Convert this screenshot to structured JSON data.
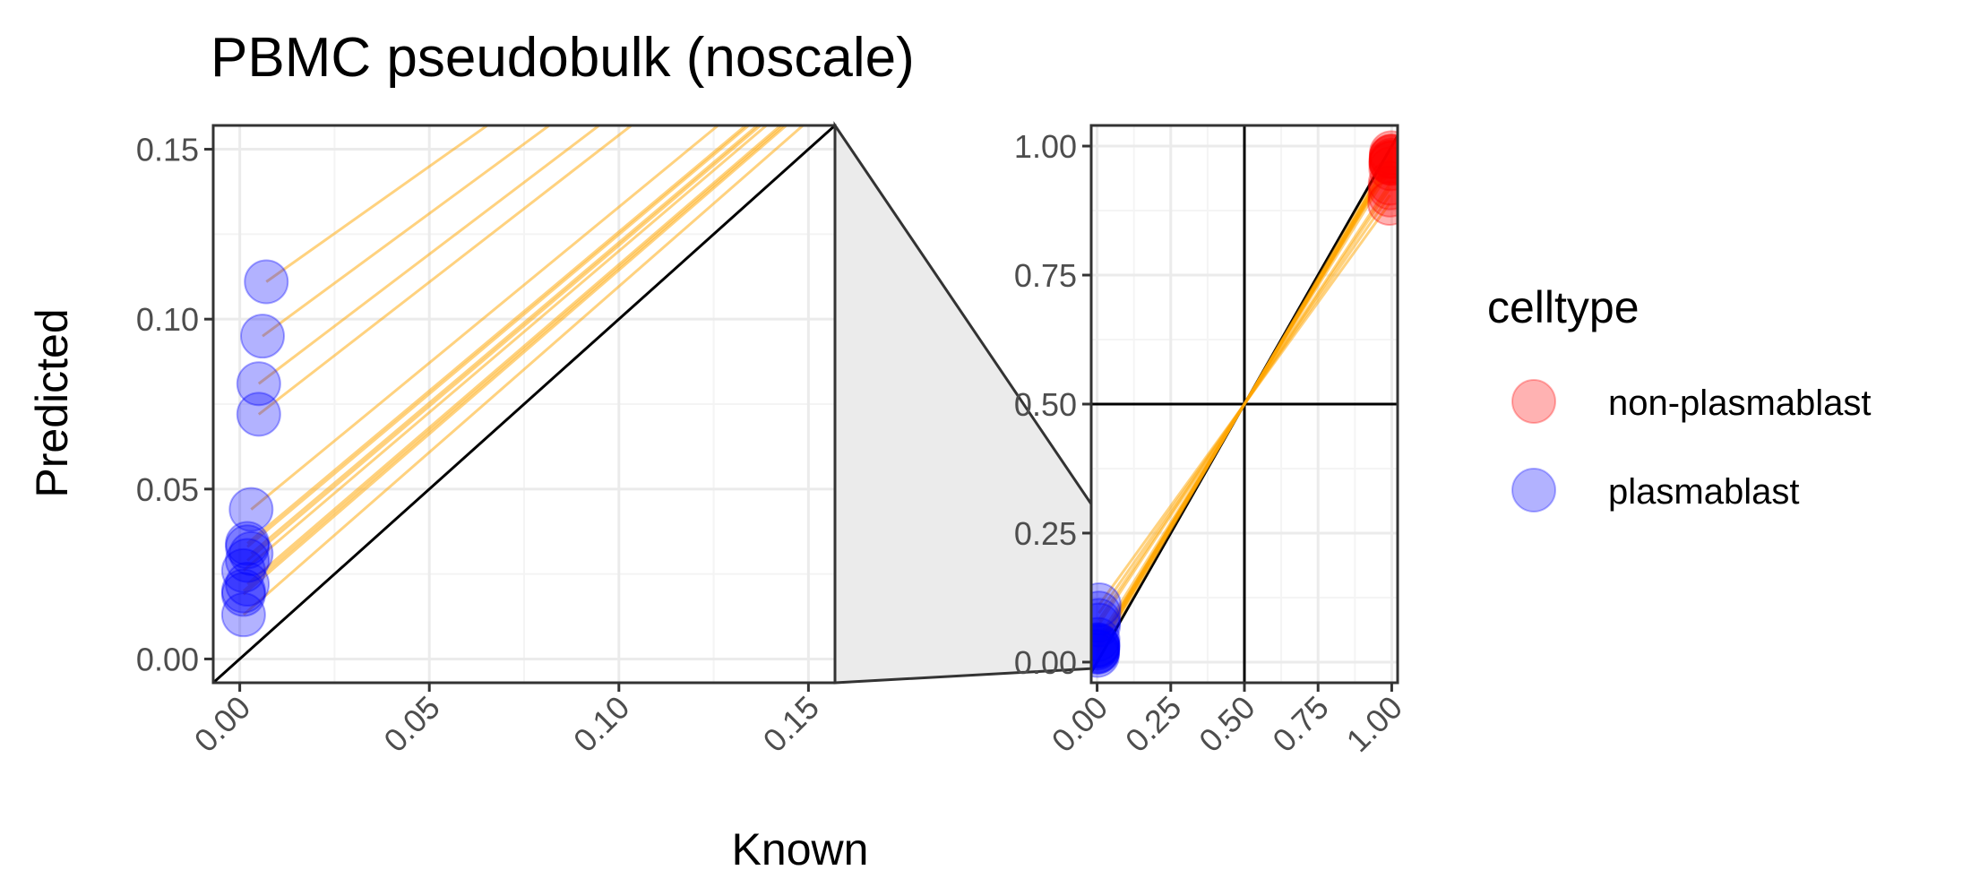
{
  "chart_data": {
    "type": "scatter",
    "title": "PBMC pseudobulk (noscale)",
    "xlabel": "Known",
    "ylabel": "Predicted",
    "legend": {
      "title": "celltype",
      "placement": "right",
      "entries": [
        {
          "name": "non-plasmablast",
          "color": "#ff0000"
        },
        {
          "name": "plasmablast",
          "color": "#0000ff"
        }
      ]
    },
    "colors": {
      "line": "#ffa500",
      "identity": "#000000",
      "zoom_fill": "#ebebeb",
      "grid_major": "#ebebeb",
      "grid_minor": "#f4f4f4"
    },
    "panels": [
      {
        "name": "zoom",
        "xlim": [
          -0.007,
          0.157
        ],
        "ylim": [
          -0.007,
          0.157
        ],
        "x_ticks": [
          "0.00",
          "0.05",
          "0.10",
          "0.15"
        ],
        "y_ticks": [
          "0.00",
          "0.05",
          "0.10",
          "0.15"
        ],
        "grid": true,
        "identity_line": true
      },
      {
        "name": "full",
        "xlim": [
          -0.02,
          1.02
        ],
        "ylim": [
          -0.04,
          1.04
        ],
        "x_ticks": [
          "0.00",
          "0.25",
          "0.50",
          "0.75",
          "1.00"
        ],
        "y_ticks": [
          "0.00",
          "0.25",
          "0.50",
          "0.75",
          "1.00"
        ],
        "grid": true,
        "identity_line": true,
        "reference_lines": {
          "x": 0.5,
          "y": 0.5
        }
      }
    ],
    "series": [
      {
        "name": "plasmablast",
        "points": [
          {
            "x": 0.007,
            "y": 0.111
          },
          {
            "x": 0.006,
            "y": 0.095
          },
          {
            "x": 0.005,
            "y": 0.081
          },
          {
            "x": 0.005,
            "y": 0.072
          },
          {
            "x": 0.003,
            "y": 0.044
          },
          {
            "x": 0.002,
            "y": 0.034
          },
          {
            "x": 0.002,
            "y": 0.033
          },
          {
            "x": 0.003,
            "y": 0.031
          },
          {
            "x": 0.002,
            "y": 0.029
          },
          {
            "x": 0.001,
            "y": 0.026
          },
          {
            "x": 0.002,
            "y": 0.022
          },
          {
            "x": 0.001,
            "y": 0.02
          },
          {
            "x": 0.001,
            "y": 0.019
          },
          {
            "x": 0.001,
            "y": 0.013
          }
        ]
      },
      {
        "name": "non-plasmablast",
        "points": [
          {
            "x": 0.993,
            "y": 0.889
          },
          {
            "x": 0.994,
            "y": 0.905
          },
          {
            "x": 0.995,
            "y": 0.919
          },
          {
            "x": 0.995,
            "y": 0.928
          },
          {
            "x": 0.997,
            "y": 0.956
          },
          {
            "x": 0.998,
            "y": 0.966
          },
          {
            "x": 0.998,
            "y": 0.967
          },
          {
            "x": 0.997,
            "y": 0.969
          },
          {
            "x": 0.998,
            "y": 0.971
          },
          {
            "x": 0.999,
            "y": 0.974
          },
          {
            "x": 0.998,
            "y": 0.978
          },
          {
            "x": 0.999,
            "y": 0.98
          },
          {
            "x": 0.999,
            "y": 0.981
          },
          {
            "x": 0.999,
            "y": 0.987
          }
        ]
      }
    ]
  }
}
